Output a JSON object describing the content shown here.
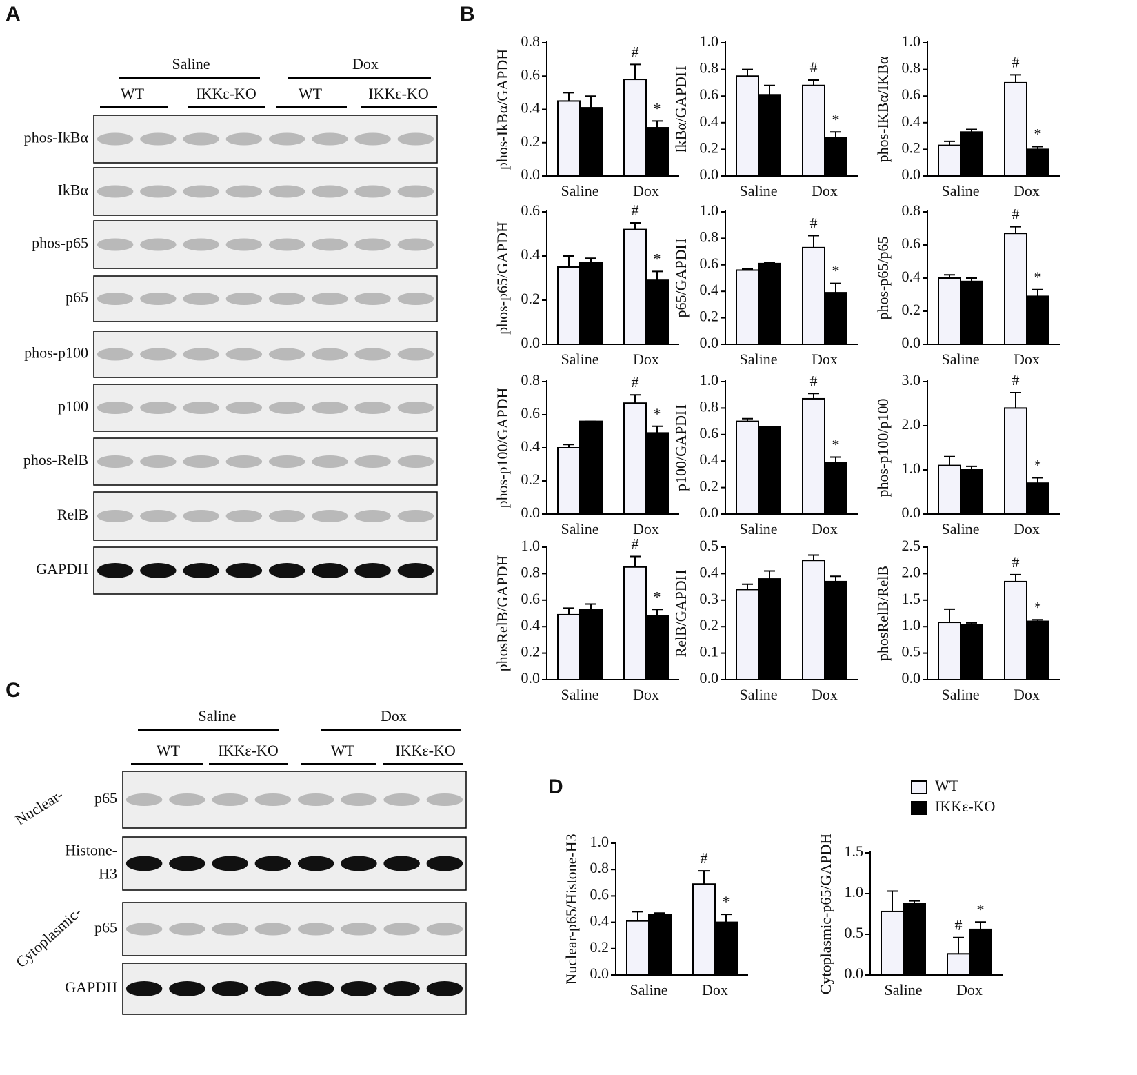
{
  "panels": [
    "A",
    "B",
    "C",
    "D"
  ],
  "blot_A": {
    "groups": [
      "Saline",
      "Dox"
    ],
    "genotypes": [
      "WT",
      "IKKε-KO",
      "WT",
      "IKKε-KO"
    ],
    "rows": [
      "phos-IkBα",
      "IkBα",
      "phos-p65",
      "p65",
      "phos-p100",
      "p100",
      "phos-RelB",
      "RelB",
      "GAPDH"
    ]
  },
  "blot_C": {
    "groups": [
      "Saline",
      "Dox"
    ],
    "genotypes": [
      "WT",
      "IKKε-KO",
      "WT",
      "IKKε-KO"
    ],
    "compartments": [
      "Nuclear-",
      "Cytoplasmic-"
    ],
    "rows": [
      [
        "p65"
      ],
      [
        "Histone-",
        "H3"
      ],
      [
        "p65"
      ],
      [
        "GAPDH"
      ]
    ]
  },
  "legend": [
    {
      "name": "WT",
      "color": "#f3f3fb"
    },
    {
      "name": "IKKε-KO",
      "color": "#000000"
    }
  ],
  "chart_data": [
    {
      "type": "bar",
      "ylabel": "phos-IkBα/GAPDH",
      "categories": [
        "Saline",
        "Dox"
      ],
      "ylim": [
        0,
        0.8
      ],
      "yticks": [
        {
          "value": 0,
          "label": "0.0"
        },
        {
          "value": 0.2,
          "label": "0.2"
        },
        {
          "value": 0.4,
          "label": "0.4"
        },
        {
          "value": 0.6,
          "label": "0.6"
        },
        {
          "value": 0.8,
          "label": "0.8"
        }
      ],
      "series": [
        {
          "color": "#f3f3fb",
          "values": [
            0.45,
            0.58
          ],
          "errors": [
            0.05,
            0.09
          ],
          "labels": [
            null,
            "#"
          ]
        },
        {
          "color": "#000000",
          "values": [
            0.41,
            0.29
          ],
          "errors": [
            0.07,
            0.04
          ],
          "labels": [
            null,
            "*"
          ]
        }
      ]
    },
    {
      "type": "bar",
      "ylabel": "IkBα/GAPDH",
      "categories": [
        "Saline",
        "Dox"
      ],
      "ylim": [
        0,
        1.0
      ],
      "yticks": [
        {
          "value": 0,
          "label": "0.0"
        },
        {
          "value": 0.2,
          "label": "0.2"
        },
        {
          "value": 0.4,
          "label": "0.4"
        },
        {
          "value": 0.6,
          "label": "0.6"
        },
        {
          "value": 0.8,
          "label": "0.8"
        },
        {
          "value": 1,
          "label": "1.0"
        }
      ],
      "series": [
        {
          "color": "#f3f3fb",
          "values": [
            0.75,
            0.68
          ],
          "errors": [
            0.05,
            0.04
          ],
          "labels": [
            null,
            "#"
          ]
        },
        {
          "color": "#000000",
          "values": [
            0.61,
            0.29
          ],
          "errors": [
            0.07,
            0.04
          ],
          "labels": [
            null,
            "*"
          ]
        }
      ]
    },
    {
      "type": "bar",
      "ylabel": "phos-IKBα/IKBα",
      "categories": [
        "Saline",
        "Dox"
      ],
      "ylim": [
        0,
        1.0
      ],
      "yticks": [
        {
          "value": 0,
          "label": "0.0"
        },
        {
          "value": 0.2,
          "label": "0.2"
        },
        {
          "value": 0.4,
          "label": "0.4"
        },
        {
          "value": 0.6,
          "label": "0.6"
        },
        {
          "value": 0.8,
          "label": "0.8"
        },
        {
          "value": 1,
          "label": "1.0"
        }
      ],
      "series": [
        {
          "color": "#f3f3fb",
          "values": [
            0.23,
            0.7
          ],
          "errors": [
            0.03,
            0.06
          ],
          "labels": [
            null,
            "#"
          ]
        },
        {
          "color": "#000000",
          "values": [
            0.33,
            0.2
          ],
          "errors": [
            0.02,
            0.02
          ],
          "labels": [
            null,
            "*"
          ]
        }
      ]
    },
    {
      "type": "bar",
      "ylabel": "phos-p65/GAPDH",
      "categories": [
        "Saline",
        "Dox"
      ],
      "ylim": [
        0,
        0.6
      ],
      "yticks": [
        {
          "value": 0,
          "label": "0.0"
        },
        {
          "value": 0.2,
          "label": "0.2"
        },
        {
          "value": 0.4,
          "label": "0.4"
        },
        {
          "value": 0.6,
          "label": "0.6"
        }
      ],
      "series": [
        {
          "color": "#f3f3fb",
          "values": [
            0.35,
            0.52
          ],
          "errors": [
            0.05,
            0.03
          ],
          "labels": [
            null,
            "#"
          ]
        },
        {
          "color": "#000000",
          "values": [
            0.37,
            0.29
          ],
          "errors": [
            0.02,
            0.04
          ],
          "labels": [
            null,
            "*"
          ]
        }
      ]
    },
    {
      "type": "bar",
      "ylabel": "p65/GAPDH",
      "categories": [
        "Saline",
        "Dox"
      ],
      "ylim": [
        0,
        1.0
      ],
      "yticks": [
        {
          "value": 0,
          "label": "0.0"
        },
        {
          "value": 0.2,
          "label": "0.2"
        },
        {
          "value": 0.4,
          "label": "0.4"
        },
        {
          "value": 0.6,
          "label": "0.6"
        },
        {
          "value": 0.8,
          "label": "0.8"
        },
        {
          "value": 1,
          "label": "1.0"
        }
      ],
      "series": [
        {
          "color": "#f3f3fb",
          "values": [
            0.56,
            0.73
          ],
          "errors": [
            0.01,
            0.09
          ],
          "labels": [
            null,
            "#"
          ]
        },
        {
          "color": "#000000",
          "values": [
            0.61,
            0.39
          ],
          "errors": [
            0.01,
            0.07
          ],
          "labels": [
            null,
            "*"
          ]
        }
      ]
    },
    {
      "type": "bar",
      "ylabel": "phos-p65/p65",
      "categories": [
        "Saline",
        "Dox"
      ],
      "ylim": [
        0,
        0.8
      ],
      "yticks": [
        {
          "value": 0,
          "label": "0.0"
        },
        {
          "value": 0.2,
          "label": "0.2"
        },
        {
          "value": 0.4,
          "label": "0.4"
        },
        {
          "value": 0.6,
          "label": "0.6"
        },
        {
          "value": 0.8,
          "label": "0.8"
        }
      ],
      "series": [
        {
          "color": "#f3f3fb",
          "values": [
            0.4,
            0.67
          ],
          "errors": [
            0.02,
            0.04
          ],
          "labels": [
            null,
            "#"
          ]
        },
        {
          "color": "#000000",
          "values": [
            0.38,
            0.29
          ],
          "errors": [
            0.02,
            0.04
          ],
          "labels": [
            null,
            "*"
          ]
        }
      ]
    },
    {
      "type": "bar",
      "ylabel": "phos-p100/GAPDH",
      "categories": [
        "Saline",
        "Dox"
      ],
      "ylim": [
        0,
        0.8
      ],
      "yticks": [
        {
          "value": 0,
          "label": "0.0"
        },
        {
          "value": 0.2,
          "label": "0.2"
        },
        {
          "value": 0.4,
          "label": "0.4"
        },
        {
          "value": 0.6,
          "label": "0.6"
        },
        {
          "value": 0.8,
          "label": "0.8"
        }
      ],
      "series": [
        {
          "color": "#f3f3fb",
          "values": [
            0.4,
            0.67
          ],
          "errors": [
            0.02,
            0.05
          ],
          "labels": [
            null,
            "#"
          ]
        },
        {
          "color": "#000000",
          "values": [
            0.56,
            0.49
          ],
          "errors": [
            0,
            0.04
          ],
          "labels": [
            null,
            "*"
          ]
        }
      ]
    },
    {
      "type": "bar",
      "ylabel": "p100/GAPDH",
      "categories": [
        "Saline",
        "Dox"
      ],
      "ylim": [
        0,
        1.0
      ],
      "yticks": [
        {
          "value": 0,
          "label": "0.0"
        },
        {
          "value": 0.2,
          "label": "0.2"
        },
        {
          "value": 0.4,
          "label": "0.4"
        },
        {
          "value": 0.6,
          "label": "0.6"
        },
        {
          "value": 0.8,
          "label": "0.8"
        },
        {
          "value": 1,
          "label": "1.0"
        }
      ],
      "series": [
        {
          "color": "#f3f3fb",
          "values": [
            0.7,
            0.87
          ],
          "errors": [
            0.02,
            0.04
          ],
          "labels": [
            null,
            "#"
          ]
        },
        {
          "color": "#000000",
          "values": [
            0.66,
            0.39
          ],
          "errors": [
            0,
            0.04
          ],
          "labels": [
            null,
            "*"
          ]
        }
      ]
    },
    {
      "type": "bar",
      "ylabel": "phos-p100/p100",
      "categories": [
        "Saline",
        "Dox"
      ],
      "ylim": [
        0,
        3.0
      ],
      "yticks": [
        {
          "value": 0,
          "label": "0.0"
        },
        {
          "value": 1,
          "label": "1.0"
        },
        {
          "value": 2,
          "label": "2.0"
        },
        {
          "value": 3,
          "label": "3.0"
        }
      ],
      "series": [
        {
          "color": "#f3f3fb",
          "values": [
            1.1,
            2.4
          ],
          "errors": [
            0.2,
            0.35
          ],
          "labels": [
            null,
            "#"
          ]
        },
        {
          "color": "#000000",
          "values": [
            1.0,
            0.7
          ],
          "errors": [
            0.08,
            0.12
          ],
          "labels": [
            null,
            "*"
          ]
        }
      ]
    },
    {
      "type": "bar",
      "ylabel": "phosRelB/GAPDH",
      "categories": [
        "Saline",
        "Dox"
      ],
      "ylim": [
        0,
        1.0
      ],
      "yticks": [
        {
          "value": 0,
          "label": "0.0"
        },
        {
          "value": 0.2,
          "label": "0.2"
        },
        {
          "value": 0.4,
          "label": "0.4"
        },
        {
          "value": 0.6,
          "label": "0.6"
        },
        {
          "value": 0.8,
          "label": "0.8"
        },
        {
          "value": 1,
          "label": "1.0"
        }
      ],
      "series": [
        {
          "color": "#f3f3fb",
          "values": [
            0.49,
            0.85
          ],
          "errors": [
            0.05,
            0.08
          ],
          "labels": [
            null,
            "#"
          ]
        },
        {
          "color": "#000000",
          "values": [
            0.53,
            0.48
          ],
          "errors": [
            0.04,
            0.05
          ],
          "labels": [
            null,
            "*"
          ]
        }
      ]
    },
    {
      "type": "bar",
      "ylabel": "RelB/GAPDH",
      "categories": [
        "Saline",
        "Dox"
      ],
      "ylim": [
        0,
        0.5
      ],
      "yticks": [
        {
          "value": 0,
          "label": "0.0"
        },
        {
          "value": 0.1,
          "label": "0.1"
        },
        {
          "value": 0.2,
          "label": "0.2"
        },
        {
          "value": 0.3,
          "label": "0.3"
        },
        {
          "value": 0.4,
          "label": "0.4"
        },
        {
          "value": 0.5,
          "label": "0.5"
        }
      ],
      "series": [
        {
          "color": "#f3f3fb",
          "values": [
            0.34,
            0.45
          ],
          "errors": [
            0.02,
            0.02
          ]
        },
        {
          "color": "#000000",
          "values": [
            0.38,
            0.37
          ],
          "errors": [
            0.03,
            0.02
          ]
        }
      ]
    },
    {
      "type": "bar",
      "ylabel": "phosRelB/RelB",
      "categories": [
        "Saline",
        "Dox"
      ],
      "ylim": [
        0,
        2.5
      ],
      "yticks": [
        {
          "value": 0,
          "label": "0.0"
        },
        {
          "value": 0.5,
          "label": "0.5"
        },
        {
          "value": 1,
          "label": "1.0"
        },
        {
          "value": 1.5,
          "label": "1.5"
        },
        {
          "value": 2,
          "label": "2.0"
        },
        {
          "value": 2.5,
          "label": "2.5"
        }
      ],
      "series": [
        {
          "color": "#f3f3fb",
          "values": [
            1.08,
            1.85
          ],
          "errors": [
            0.25,
            0.13
          ],
          "labels": [
            null,
            "#"
          ]
        },
        {
          "color": "#000000",
          "values": [
            1.03,
            1.1
          ],
          "errors": [
            0.04,
            0.03
          ],
          "labels": [
            null,
            "*"
          ]
        }
      ]
    },
    {
      "type": "bar",
      "ylabel": "Nuclear-p65/Histone-H3",
      "categories": [
        "Saline",
        "Dox"
      ],
      "ylim": [
        0,
        1.0
      ],
      "yticks": [
        {
          "value": 0,
          "label": "0.0"
        },
        {
          "value": 0.2,
          "label": "0.2"
        },
        {
          "value": 0.4,
          "label": "0.4"
        },
        {
          "value": 0.6,
          "label": "0.6"
        },
        {
          "value": 0.8,
          "label": "0.8"
        },
        {
          "value": 1,
          "label": "1.0"
        }
      ],
      "series": [
        {
          "color": "#f3f3fb",
          "values": [
            0.41,
            0.69
          ],
          "errors": [
            0.07,
            0.1
          ],
          "labels": [
            null,
            "#"
          ]
        },
        {
          "color": "#000000",
          "values": [
            0.46,
            0.4
          ],
          "errors": [
            0.01,
            0.06
          ],
          "labels": [
            null,
            "*"
          ]
        }
      ]
    },
    {
      "type": "bar",
      "ylabel": "Cytoplasmic-p65/GAPDH",
      "categories": [
        "Saline",
        "Dox"
      ],
      "ylim": [
        0,
        1.5
      ],
      "yticks": [
        {
          "value": 0,
          "label": "0.0"
        },
        {
          "value": 0.5,
          "label": "0.5"
        },
        {
          "value": 1,
          "label": "1.0"
        },
        {
          "value": 1.5,
          "label": "1.5"
        }
      ],
      "series": [
        {
          "color": "#f3f3fb",
          "values": [
            0.78,
            0.26
          ],
          "errors": [
            0.25,
            0.2
          ],
          "labels": [
            null,
            "#"
          ]
        },
        {
          "color": "#000000",
          "values": [
            0.88,
            0.56
          ],
          "errors": [
            0.03,
            0.09
          ],
          "labels": [
            null,
            "*"
          ]
        }
      ]
    }
  ]
}
